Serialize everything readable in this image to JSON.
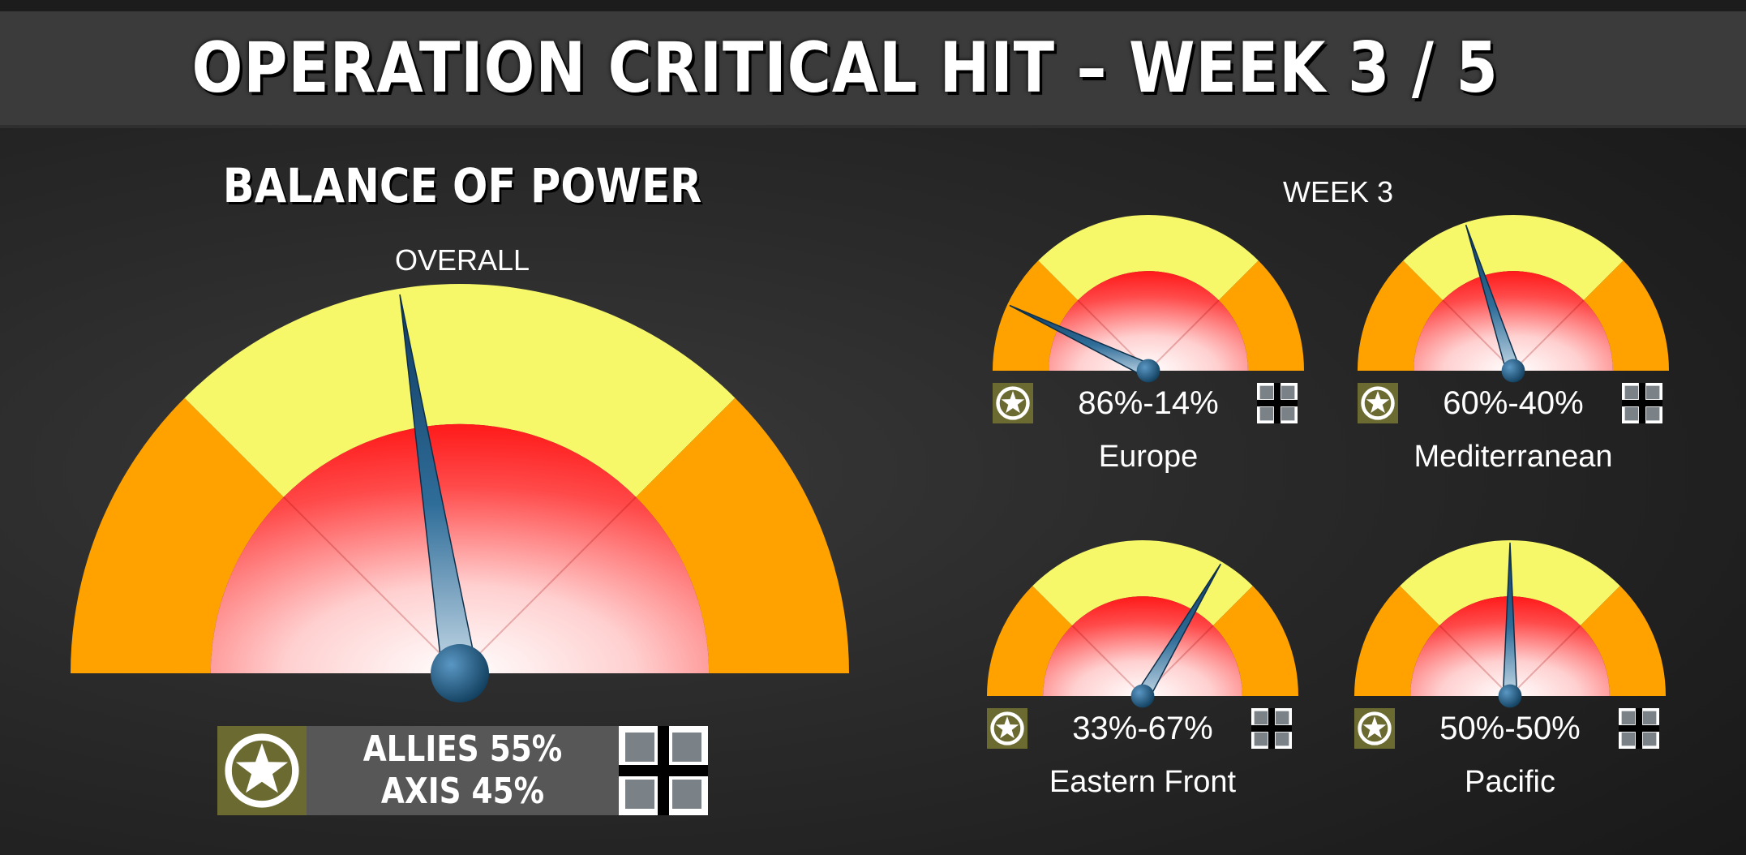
{
  "header": {
    "title": "OPERATION CRITICAL HIT – WEEK 3 / 5"
  },
  "balance": {
    "title": "BALANCE OF POWER",
    "overall_label": "OVERALL",
    "allies_line": "ALLIES 55%",
    "axis_line": "AXIS 45%",
    "allies_share": 55
  },
  "week": {
    "label": "WEEK 3"
  },
  "fronts": [
    {
      "region": "Europe",
      "score": "86%-14%",
      "allies_share": 86
    },
    {
      "region": "Mediterranean",
      "score": "60%-40%",
      "allies_share": 60
    },
    {
      "region": "Eastern Front",
      "score": "33%-67%",
      "allies_share": 33
    },
    {
      "region": "Pacific",
      "score": "50%-50%",
      "allies_share": 50
    }
  ],
  "icons": {
    "allies": "allied-star-icon",
    "axis": "balkenkreuz-icon"
  },
  "colors": {
    "outer_zone": "#ffa200",
    "mid_zone": "#f7f76a",
    "inner_zone": "#ff1e1e",
    "needle": "#1b4f78",
    "banner": "#3b3b3b"
  }
}
